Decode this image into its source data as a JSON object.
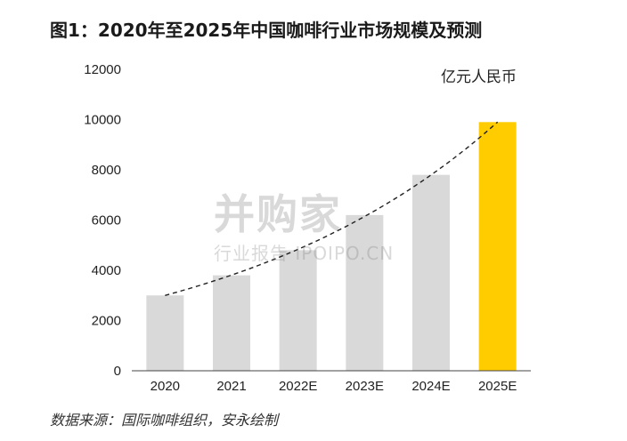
{
  "title": "图1：2020年至2025年中国咖啡行业市场规模及预测",
  "unit": "亿元人民币",
  "source": "数据来源：国际咖啡组织，安永绘制",
  "watermark": {
    "main": "并购家",
    "sub": "行业报告 IPOIPO.CN"
  },
  "colors": {
    "bar": "#d9d9d9",
    "highlight": "#ffcc00",
    "axis": "#444444",
    "trend": "#222222"
  },
  "chart_data": {
    "type": "bar",
    "categories": [
      "2020",
      "2021",
      "2022E",
      "2023E",
      "2024E",
      "2025E"
    ],
    "values": [
      3000,
      3800,
      4800,
      6200,
      7800,
      9900
    ],
    "highlight_index": 5,
    "ylim": [
      0,
      12000
    ],
    "yticks": [
      0,
      2000,
      4000,
      6000,
      8000,
      10000,
      12000
    ],
    "trendline": {
      "style": "dashed",
      "type": "exponential"
    },
    "grid": false,
    "xlabel": "",
    "ylabel": "亿元人民币"
  }
}
